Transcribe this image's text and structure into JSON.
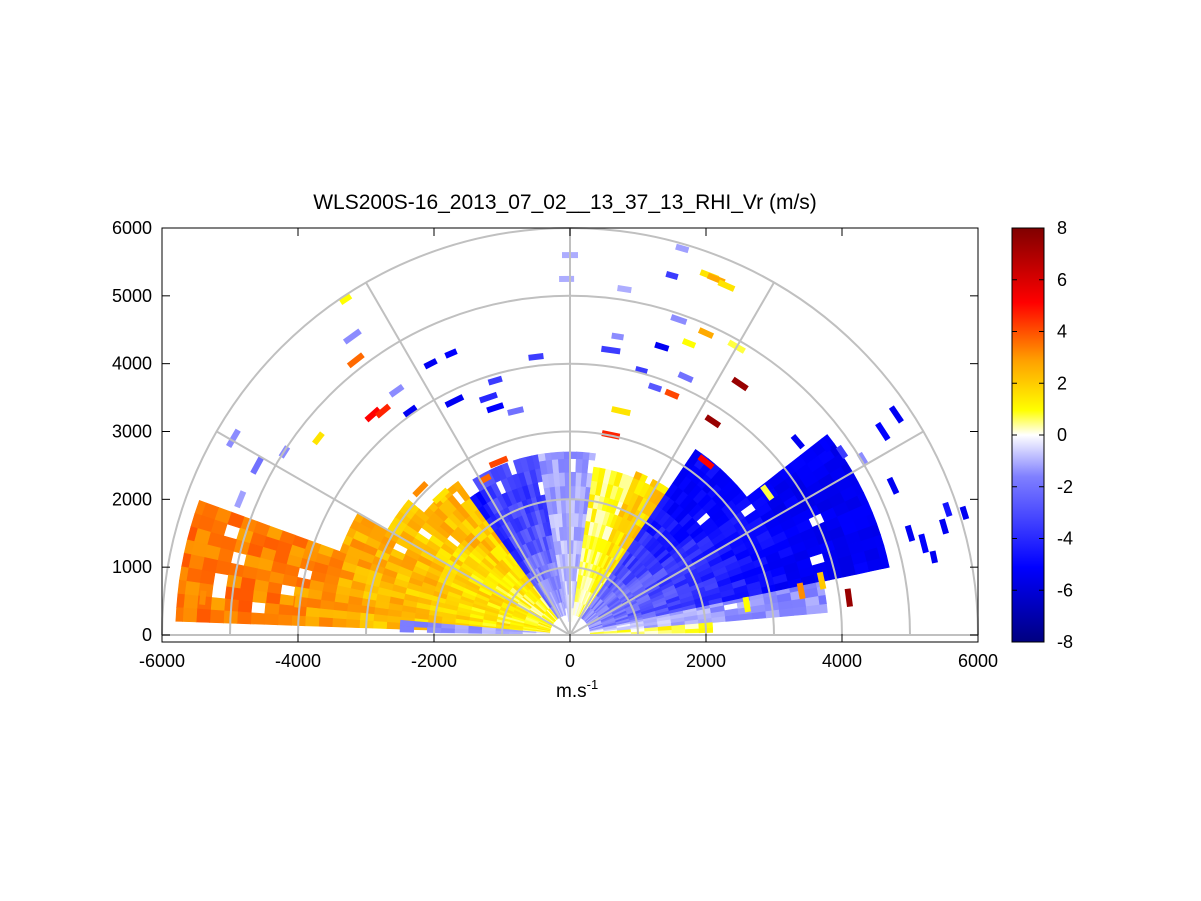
{
  "chart_data": {
    "type": "heatmap",
    "subtype": "polar RHI scan (half-disc)",
    "title": "WLS200S-16_2013_07_02__13_37_13_RHI_Vr (m/s)",
    "xlabel": "m.s",
    "xlabel_superscript": "-1",
    "ylabel": "",
    "xlim": [
      -6000,
      6000
    ],
    "ylim": [
      0,
      6000
    ],
    "xticks": [
      -6000,
      -4000,
      -2000,
      0,
      2000,
      4000,
      6000
    ],
    "yticks": [
      0,
      1000,
      2000,
      3000,
      4000,
      5000,
      6000
    ],
    "polar_grid": {
      "ranges": [
        1000,
        2000,
        3000,
        4000,
        5000,
        6000
      ],
      "spokes_deg": [
        0,
        30,
        60,
        90,
        120,
        150,
        180
      ]
    },
    "colorbar": {
      "range": [
        -8,
        8
      ],
      "ticks": [
        8,
        6,
        4,
        2,
        0,
        -2,
        -4,
        -6,
        -8
      ],
      "colormap": [
        "#000080",
        "#0000ff",
        "#8080ff",
        "#ffffff",
        "#ffff00",
        "#ff8000",
        "#ff0000",
        "#800000"
      ]
    },
    "sectors": [
      {
        "az_from": 160,
        "az_to": 178,
        "r_from": 300,
        "r_to": 5800,
        "vr": 3.2
      },
      {
        "az_from": 150,
        "az_to": 160,
        "r_from": 300,
        "r_to": 3600,
        "vr": 2.5
      },
      {
        "az_from": 140,
        "az_to": 150,
        "r_from": 300,
        "r_to": 3100,
        "vr": 2.0
      },
      {
        "az_from": 126,
        "az_to": 140,
        "r_from": 300,
        "r_to": 2800,
        "vr": 2.2
      },
      {
        "az_from": 122,
        "az_to": 126,
        "r_from": 300,
        "r_to": 2500,
        "vr": -4.0
      },
      {
        "az_from": 100,
        "az_to": 122,
        "r_from": 300,
        "r_to": 2700,
        "vr": -3.0
      },
      {
        "az_from": 82,
        "az_to": 100,
        "r_from": 200,
        "r_to": 2700,
        "vr": -1.2
      },
      {
        "az_from": 68,
        "az_to": 82,
        "r_from": 300,
        "r_to": 2500,
        "vr": 0.8
      },
      {
        "az_from": 56,
        "az_to": 68,
        "r_from": 300,
        "r_to": 2600,
        "vr": 1.8
      },
      {
        "az_from": 38,
        "az_to": 56,
        "r_from": 300,
        "r_to": 3300,
        "vr": -4.5
      },
      {
        "az_from": 12,
        "az_to": 38,
        "r_from": 300,
        "r_to": 4800,
        "vr": -5.0
      },
      {
        "az_from": 5,
        "az_to": 12,
        "r_from": 300,
        "r_to": 3800,
        "vr": -1.5
      },
      {
        "az_from": 1,
        "az_to": 5,
        "r_from": 300,
        "r_to": 2100,
        "vr": 0.8
      },
      {
        "az_from": 175,
        "az_to": 179,
        "r_from": 300,
        "r_to": 2500,
        "vr": -1.5
      }
    ],
    "scattered_gates": [
      {
        "x": -3300,
        "y": 4950,
        "vr": 1.0
      },
      {
        "x": -3200,
        "y": 4400,
        "vr": -1.5
      },
      {
        "x": -3150,
        "y": 4050,
        "vr": 3.5
      },
      {
        "x": -2900,
        "y": 3250,
        "vr": 5.0
      },
      {
        "x": -2750,
        "y": 3300,
        "vr": 4.5
      },
      {
        "x": -2550,
        "y": 3600,
        "vr": -1.5
      },
      {
        "x": -2350,
        "y": 3300,
        "vr": -5.0
      },
      {
        "x": -2050,
        "y": 4000,
        "vr": -5.0
      },
      {
        "x": -1750,
        "y": 4150,
        "vr": -4.5
      },
      {
        "x": -1700,
        "y": 3450,
        "vr": -5.0
      },
      {
        "x": -1200,
        "y": 3500,
        "vr": -3.5
      },
      {
        "x": -1100,
        "y": 3350,
        "vr": -4.5
      },
      {
        "x": -800,
        "y": 3300,
        "vr": -2.0
      },
      {
        "x": -500,
        "y": 4100,
        "vr": -3.0
      },
      {
        "x": -1100,
        "y": 3750,
        "vr": -3.0
      },
      {
        "x": -3700,
        "y": 2900,
        "vr": 1.5
      },
      {
        "x": -4200,
        "y": 2700,
        "vr": -1.5
      },
      {
        "x": -4950,
        "y": 2900,
        "vr": -1.5
      },
      {
        "x": -4600,
        "y": 2500,
        "vr": -2.0
      },
      {
        "x": -4850,
        "y": 2000,
        "vr": -1.2
      },
      {
        "x": 0,
        "y": 5600,
        "vr": -1.0
      },
      {
        "x": -50,
        "y": 5250,
        "vr": -1.0
      },
      {
        "x": 800,
        "y": 5100,
        "vr": -1.0
      },
      {
        "x": 1650,
        "y": 5700,
        "vr": -1.2
      },
      {
        "x": 1500,
        "y": 5300,
        "vr": -3.0
      },
      {
        "x": 2050,
        "y": 5300,
        "vr": 1.5
      },
      {
        "x": 2150,
        "y": 5250,
        "vr": 2.5
      },
      {
        "x": 2300,
        "y": 5150,
        "vr": 1.5
      },
      {
        "x": 1600,
        "y": 4650,
        "vr": -1.5
      },
      {
        "x": 2000,
        "y": 4450,
        "vr": 2.5
      },
      {
        "x": 1350,
        "y": 4250,
        "vr": -5.0
      },
      {
        "x": 1750,
        "y": 4300,
        "vr": 1.0
      },
      {
        "x": 700,
        "y": 4400,
        "vr": -1.5
      },
      {
        "x": 600,
        "y": 4200,
        "vr": -3.0
      },
      {
        "x": 2450,
        "y": 4250,
        "vr": 0.8
      },
      {
        "x": 2500,
        "y": 3700,
        "vr": 7.5
      },
      {
        "x": 2100,
        "y": 3150,
        "vr": 7.5
      },
      {
        "x": 1700,
        "y": 3800,
        "vr": -2.0
      },
      {
        "x": 1500,
        "y": 3550,
        "vr": 4.0
      },
      {
        "x": 1250,
        "y": 3650,
        "vr": -2.5
      },
      {
        "x": 1050,
        "y": 3900,
        "vr": -3.0
      },
      {
        "x": 750,
        "y": 3300,
        "vr": 1.5
      },
      {
        "x": 600,
        "y": 2950,
        "vr": 4.5
      },
      {
        "x": 2000,
        "y": 2550,
        "vr": 5.0
      },
      {
        "x": 2900,
        "y": 2100,
        "vr": 0.8
      },
      {
        "x": 3350,
        "y": 2850,
        "vr": -5.0
      },
      {
        "x": 3750,
        "y": 2800,
        "vr": -4.5
      },
      {
        "x": 4000,
        "y": 2700,
        "vr": -3.0
      },
      {
        "x": 4300,
        "y": 2600,
        "vr": -1.5
      },
      {
        "x": 4600,
        "y": 3000,
        "vr": -4.5
      },
      {
        "x": 4800,
        "y": 3250,
        "vr": -5.0
      },
      {
        "x": 4750,
        "y": 2200,
        "vr": -5.0
      },
      {
        "x": 5000,
        "y": 1500,
        "vr": -5.0
      },
      {
        "x": 5500,
        "y": 1600,
        "vr": -5.0
      },
      {
        "x": 5550,
        "y": 1850,
        "vr": -4.0
      },
      {
        "x": 5800,
        "y": 1800,
        "vr": -5.0
      },
      {
        "x": 5350,
        "y": 1150,
        "vr": -5.0
      },
      {
        "x": 5200,
        "y": 1350,
        "vr": -4.5
      },
      {
        "x": 4100,
        "y": 550,
        "vr": 7.5
      },
      {
        "x": 3700,
        "y": 800,
        "vr": 2.0
      },
      {
        "x": 3400,
        "y": 650,
        "vr": 3.0
      },
      {
        "x": 2600,
        "y": 450,
        "vr": 1.0
      },
      {
        "x": -5400,
        "y": 550,
        "vr": 3.0
      },
      {
        "x": -4000,
        "y": 500,
        "vr": 2.5
      },
      {
        "x": -1250,
        "y": 2300,
        "vr": 3.5
      },
      {
        "x": -1050,
        "y": 2550,
        "vr": 4.0
      },
      {
        "x": -1900,
        "y": 2050,
        "vr": 1.5
      },
      {
        "x": -2200,
        "y": 2150,
        "vr": 3.0
      }
    ]
  }
}
